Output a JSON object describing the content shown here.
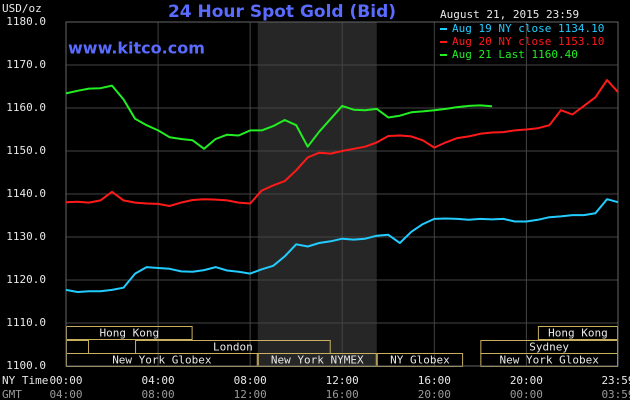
{
  "chart_data": {
    "type": "line",
    "title": "24 Hour Spot Gold (Bid)",
    "date": "August 21, 2015 23:59",
    "site": "www.kitco.com",
    "y_label": "USD/oz",
    "x_label": "NY Time",
    "x2_label": "GMT",
    "grid": true,
    "legend": "top-right",
    "xlim": [
      0,
      23.98
    ],
    "ylim": [
      1100,
      1180
    ],
    "yticks": [
      {
        "value": 1100,
        "label": "1100.0"
      },
      {
        "value": 1110,
        "label": "1110.0"
      },
      {
        "value": 1120,
        "label": "1120.0"
      },
      {
        "value": 1130,
        "label": "1130.0"
      },
      {
        "value": 1140,
        "label": "1140.0"
      },
      {
        "value": 1150,
        "label": "1150.0"
      },
      {
        "value": 1160,
        "label": "1160.0"
      },
      {
        "value": 1170,
        "label": "1170.0"
      },
      {
        "value": 1180,
        "label": "1180.0"
      }
    ],
    "xticks": [
      {
        "value": 0,
        "label": "00:00"
      },
      {
        "value": 4,
        "label": "04:00"
      },
      {
        "value": 8,
        "label": "08:00"
      },
      {
        "value": 12,
        "label": "12:00"
      },
      {
        "value": 16,
        "label": "16:00"
      },
      {
        "value": 20,
        "label": "20:00"
      },
      {
        "value": 23.98,
        "label": "23:59"
      }
    ],
    "x2ticks": [
      {
        "value": 0,
        "label": "04:00"
      },
      {
        "value": 4,
        "label": "08:00"
      },
      {
        "value": 8,
        "label": "12:00"
      },
      {
        "value": 12,
        "label": "16:00"
      },
      {
        "value": 16,
        "label": "20:00"
      },
      {
        "value": 20,
        "label": "00:00"
      },
      {
        "value": 23.98,
        "label": "03:59"
      }
    ],
    "x": [
      0,
      0.5,
      1,
      1.5,
      2,
      2.5,
      3,
      3.5,
      4,
      4.5,
      5,
      5.5,
      6,
      6.5,
      7,
      7.5,
      8,
      8.5,
      9,
      9.5,
      10,
      10.5,
      11,
      11.5,
      12,
      12.5,
      13,
      13.5,
      14,
      14.5,
      15,
      15.5,
      16,
      16.5,
      17,
      17.5,
      18,
      18.5,
      19,
      19.5,
      20,
      20.5,
      21,
      21.5,
      22,
      22.5,
      23,
      23.5,
      23.98
    ],
    "series": [
      {
        "name": "Aug 19 NY close 1134.10",
        "color": "#22ccff",
        "values": [
          1117.7,
          1117.2,
          1117.4,
          1117.4,
          1117.7,
          1118.2,
          1121.5,
          1123.0,
          1122.8,
          1122.6,
          1122.0,
          1121.9,
          1122.3,
          1123.0,
          1122.2,
          1121.9,
          1121.5,
          1122.5,
          1123.3,
          1125.5,
          1128.3,
          1127.8,
          1128.6,
          1129.0,
          1129.6,
          1129.4,
          1129.6,
          1130.3,
          1130.5,
          1128.6,
          1131.2,
          1133.0,
          1134.2,
          1134.3,
          1134.2,
          1134.0,
          1134.2,
          1134.1,
          1134.2,
          1133.6,
          1133.6,
          1134.0,
          1134.6,
          1134.8,
          1135.1,
          1135.1,
          1135.5,
          1138.8,
          1138.1
        ]
      },
      {
        "name": "Aug 20 NY close 1153.10",
        "color": "#ff1a1a",
        "values": [
          1138.1,
          1138.2,
          1138.0,
          1138.5,
          1140.5,
          1138.5,
          1138.0,
          1137.8,
          1137.7,
          1137.2,
          1138.0,
          1138.6,
          1138.8,
          1138.7,
          1138.5,
          1138.0,
          1137.8,
          1140.8,
          1142.0,
          1143.0,
          1145.5,
          1148.5,
          1149.6,
          1149.4,
          1150.0,
          1150.5,
          1151.0,
          1152.0,
          1153.5,
          1153.6,
          1153.4,
          1152.5,
          1150.8,
          1152.0,
          1153.0,
          1153.4,
          1154.0,
          1154.3,
          1154.4,
          1154.8,
          1155.0,
          1155.3,
          1156.0,
          1159.5,
          1158.5,
          1160.5,
          1162.5,
          1166.5,
          1163.7
        ]
      },
      {
        "name": "Aug 21 Last 1160.40",
        "color": "#22ee22",
        "values": [
          1163.4,
          1164.0,
          1164.5,
          1164.6,
          1165.2,
          1162.0,
          1157.5,
          1156.0,
          1154.8,
          1153.2,
          1152.8,
          1152.5,
          1150.5,
          1152.8,
          1153.8,
          1153.6,
          1154.8,
          1154.8,
          1155.8,
          1157.2,
          1156.0,
          1151.0,
          1154.5,
          1157.5,
          1160.5,
          1159.6,
          1159.5,
          1159.8,
          1157.8,
          1158.2,
          1159.0,
          1159.2,
          1159.5,
          1159.8,
          1160.2,
          1160.5,
          1160.6,
          1160.4,
          null,
          null,
          null,
          null,
          null,
          null,
          null,
          null,
          null,
          null,
          null
        ]
      }
    ],
    "sessions": [
      [
        {
          "label": "Hong Kong",
          "start": 0,
          "end": 5.5
        },
        {
          "label": "Hong Kong",
          "start": 20.5,
          "end": 23.98
        }
      ],
      [
        {
          "start": 0,
          "end": 1
        },
        {
          "label": "London",
          "start": 3,
          "end": 11.5
        },
        {
          "label": "Sydney",
          "start": 18,
          "end": 23.98
        }
      ],
      [
        {
          "label": "New York Globex",
          "start": 0,
          "end": 8.33
        },
        {
          "label": "New York NYMEX",
          "start": 8.33,
          "end": 13.5,
          "shaded": true
        },
        {
          "label": "NY Globex",
          "start": 13.5,
          "end": 17.25
        },
        {
          "label": "New York Globex",
          "start": 18,
          "end": 23.98
        }
      ]
    ]
  }
}
